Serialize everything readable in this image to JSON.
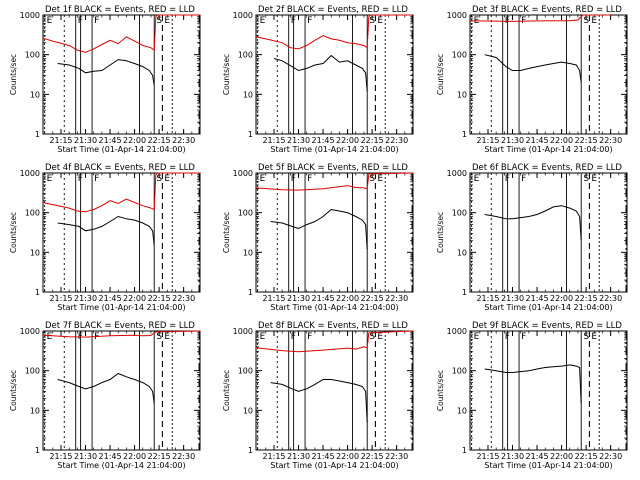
{
  "figure": {
    "ylabel": "Counts/sec",
    "xlabel": "Start Time (01-Apr-14 21:04:00)",
    "xticks": [
      "21:15",
      "21:30",
      "21:45",
      "22:00",
      "22:15",
      "22:30"
    ],
    "yticks": [
      "1",
      "10",
      "100",
      "1000"
    ],
    "markers": {
      "E": "E",
      "F": "F",
      "S": "S",
      "E2": "E"
    },
    "colors": {
      "events": "#000000",
      "lld": "#dd0000"
    }
  },
  "chart_data": [
    {
      "type": "line",
      "title": "Det 1f BLACK = Events, RED = LLD",
      "yscale": "log",
      "ylim": [
        1,
        1000
      ],
      "xlim": [
        "21:04",
        "22:40"
      ],
      "series": [
        {
          "color": "#000000",
          "x": [
            "21:13",
            "21:20",
            "21:26",
            "21:30",
            "21:35",
            "21:40",
            "21:45",
            "21:50",
            "21:55",
            "22:00",
            "22:05",
            "22:09",
            "22:11",
            "22:12"
          ],
          "values": [
            60,
            55,
            45,
            35,
            38,
            40,
            55,
            75,
            70,
            60,
            50,
            40,
            30,
            17
          ]
        },
        {
          "color": "#dd0000",
          "x": [
            "21:04",
            "21:10",
            "21:20",
            "21:25",
            "21:30",
            "21:35",
            "21:40",
            "21:45",
            "21:50",
            "21:55",
            "22:00",
            "22:05",
            "22:10",
            "22:12",
            "22:13",
            "22:14",
            "22:40"
          ],
          "values": [
            260,
            220,
            170,
            130,
            115,
            140,
            180,
            230,
            190,
            280,
            220,
            170,
            150,
            130,
            900,
            1000,
            1000
          ]
        }
      ]
    },
    {
      "type": "line",
      "title": "Det 2f BLACK = Events, RED = LLD",
      "yscale": "log",
      "ylim": [
        1,
        1000
      ],
      "xlim": [
        "21:04",
        "22:40"
      ],
      "series": [
        {
          "color": "#000000",
          "x": [
            "21:15",
            "21:20",
            "21:26",
            "21:30",
            "21:35",
            "21:40",
            "21:45",
            "21:50",
            "21:55",
            "22:00",
            "22:05",
            "22:09",
            "22:11",
            "22:12"
          ],
          "values": [
            80,
            70,
            50,
            40,
            45,
            55,
            60,
            95,
            65,
            70,
            55,
            45,
            35,
            12
          ]
        },
        {
          "color": "#dd0000",
          "x": [
            "21:04",
            "21:10",
            "21:20",
            "21:25",
            "21:30",
            "21:35",
            "21:40",
            "21:45",
            "21:50",
            "21:55",
            "22:00",
            "22:05",
            "22:10",
            "22:12",
            "22:13",
            "22:14",
            "22:40"
          ],
          "values": [
            280,
            250,
            200,
            150,
            140,
            170,
            230,
            300,
            250,
            230,
            200,
            190,
            170,
            150,
            900,
            1000,
            1000
          ]
        }
      ]
    },
    {
      "type": "line",
      "title": "Det 3f BLACK = Events, RED = LLD",
      "yscale": "log",
      "ylim": [
        1,
        1000
      ],
      "xlim": [
        "21:04",
        "22:40"
      ],
      "series": [
        {
          "color": "#000000",
          "x": [
            "21:13",
            "21:20",
            "21:26",
            "21:30",
            "21:35",
            "21:40",
            "21:45",
            "21:50",
            "21:55",
            "22:00",
            "22:05",
            "22:09",
            "22:11",
            "22:12"
          ],
          "values": [
            100,
            85,
            50,
            40,
            40,
            45,
            50,
            55,
            60,
            65,
            60,
            55,
            40,
            20
          ]
        },
        {
          "color": "#dd0000",
          "x": [
            "21:04",
            "21:20",
            "21:30",
            "21:45",
            "22:00",
            "22:05",
            "22:10",
            "22:13",
            "22:30"
          ],
          "values": [
            720,
            700,
            690,
            710,
            720,
            720,
            750,
            1000,
            1000
          ]
        }
      ]
    },
    {
      "type": "line",
      "title": "Det 4f BLACK = Events, RED = LLD",
      "yscale": "log",
      "ylim": [
        1,
        1000
      ],
      "xlim": [
        "21:04",
        "22:40"
      ],
      "series": [
        {
          "color": "#000000",
          "x": [
            "21:13",
            "21:20",
            "21:26",
            "21:30",
            "21:35",
            "21:40",
            "21:45",
            "21:50",
            "21:55",
            "22:00",
            "22:05",
            "22:09",
            "22:11",
            "22:12"
          ],
          "values": [
            55,
            50,
            45,
            35,
            38,
            45,
            60,
            80,
            70,
            65,
            55,
            45,
            35,
            15
          ]
        },
        {
          "color": "#dd0000",
          "x": [
            "21:04",
            "21:10",
            "21:20",
            "21:25",
            "21:30",
            "21:35",
            "21:40",
            "21:45",
            "21:50",
            "21:55",
            "22:00",
            "22:05",
            "22:10",
            "22:12",
            "22:13",
            "22:14",
            "22:40"
          ],
          "values": [
            180,
            160,
            130,
            110,
            105,
            120,
            150,
            200,
            170,
            220,
            180,
            150,
            130,
            120,
            900,
            1000,
            1000
          ]
        }
      ]
    },
    {
      "type": "line",
      "title": "Det 5f BLACK = Events, RED = LLD",
      "yscale": "log",
      "ylim": [
        1,
        1000
      ],
      "xlim": [
        "21:04",
        "22:40"
      ],
      "series": [
        {
          "color": "#000000",
          "x": [
            "21:13",
            "21:20",
            "21:26",
            "21:30",
            "21:35",
            "21:40",
            "21:45",
            "21:50",
            "21:55",
            "22:00",
            "22:05",
            "22:09",
            "22:11",
            "22:12"
          ],
          "values": [
            60,
            55,
            45,
            40,
            50,
            60,
            80,
            120,
            110,
            100,
            80,
            65,
            50,
            12
          ]
        },
        {
          "color": "#dd0000",
          "x": [
            "21:04",
            "21:20",
            "21:30",
            "21:45",
            "22:00",
            "22:05",
            "22:10",
            "22:12",
            "22:13",
            "22:40"
          ],
          "values": [
            420,
            380,
            370,
            400,
            480,
            430,
            420,
            400,
            950,
            1000
          ]
        }
      ]
    },
    {
      "type": "line",
      "title": "Det 6f BLACK = Events, RED = LLD",
      "yscale": "log",
      "ylim": [
        1,
        1000
      ],
      "xlim": [
        "21:04",
        "22:40"
      ],
      "series": [
        {
          "color": "#000000",
          "x": [
            "21:13",
            "21:20",
            "21:26",
            "21:30",
            "21:35",
            "21:40",
            "21:45",
            "21:50",
            "21:55",
            "22:00",
            "22:05",
            "22:09",
            "22:11",
            "22:12"
          ],
          "values": [
            90,
            80,
            70,
            70,
            75,
            80,
            90,
            110,
            140,
            150,
            130,
            110,
            80,
            20
          ]
        }
      ]
    },
    {
      "type": "line",
      "title": "Det 7f BLACK = Events, RED = LLD",
      "yscale": "log",
      "ylim": [
        1,
        1000
      ],
      "xlim": [
        "21:04",
        "22:40"
      ],
      "series": [
        {
          "color": "#000000",
          "x": [
            "21:13",
            "21:20",
            "21:26",
            "21:30",
            "21:35",
            "21:40",
            "21:45",
            "21:50",
            "21:55",
            "22:00",
            "22:05",
            "22:09",
            "22:11",
            "22:12"
          ],
          "values": [
            60,
            50,
            40,
            35,
            40,
            50,
            60,
            85,
            70,
            60,
            50,
            40,
            30,
            15
          ]
        },
        {
          "color": "#dd0000",
          "x": [
            "21:04",
            "21:20",
            "21:30",
            "21:45",
            "22:00",
            "22:05",
            "22:10",
            "22:13",
            "22:40"
          ],
          "values": [
            780,
            720,
            700,
            760,
            780,
            760,
            770,
            950,
            1000
          ]
        }
      ]
    },
    {
      "type": "line",
      "title": "Det 8f BLACK = Events, RED = LLD",
      "yscale": "log",
      "ylim": [
        1,
        1000
      ],
      "xlim": [
        "21:04",
        "22:40"
      ],
      "series": [
        {
          "color": "#000000",
          "x": [
            "21:13",
            "21:20",
            "21:26",
            "21:30",
            "21:35",
            "21:40",
            "21:45",
            "21:50",
            "21:55",
            "22:00",
            "22:05",
            "22:09",
            "22:11",
            "22:12"
          ],
          "values": [
            50,
            45,
            35,
            30,
            35,
            45,
            60,
            60,
            55,
            50,
            45,
            40,
            30,
            5
          ]
        },
        {
          "color": "#dd0000",
          "x": [
            "21:04",
            "21:20",
            "21:30",
            "21:45",
            "22:00",
            "22:05",
            "22:10",
            "22:12",
            "22:13",
            "22:40"
          ],
          "values": [
            380,
            320,
            300,
            330,
            370,
            350,
            400,
            380,
            900,
            1000
          ]
        }
      ]
    },
    {
      "type": "line",
      "title": "Det 9f BLACK = Events, RED = LLD",
      "yscale": "log",
      "ylim": [
        1,
        1000
      ],
      "xlim": [
        "21:04",
        "22:40"
      ],
      "series": [
        {
          "color": "#000000",
          "x": [
            "21:13",
            "21:20",
            "21:26",
            "21:30",
            "21:35",
            "21:40",
            "21:45",
            "21:50",
            "21:55",
            "22:00",
            "22:05",
            "22:09",
            "22:11",
            "22:12"
          ],
          "values": [
            110,
            100,
            90,
            90,
            95,
            100,
            110,
            120,
            125,
            130,
            140,
            130,
            120,
            15
          ]
        }
      ]
    }
  ]
}
